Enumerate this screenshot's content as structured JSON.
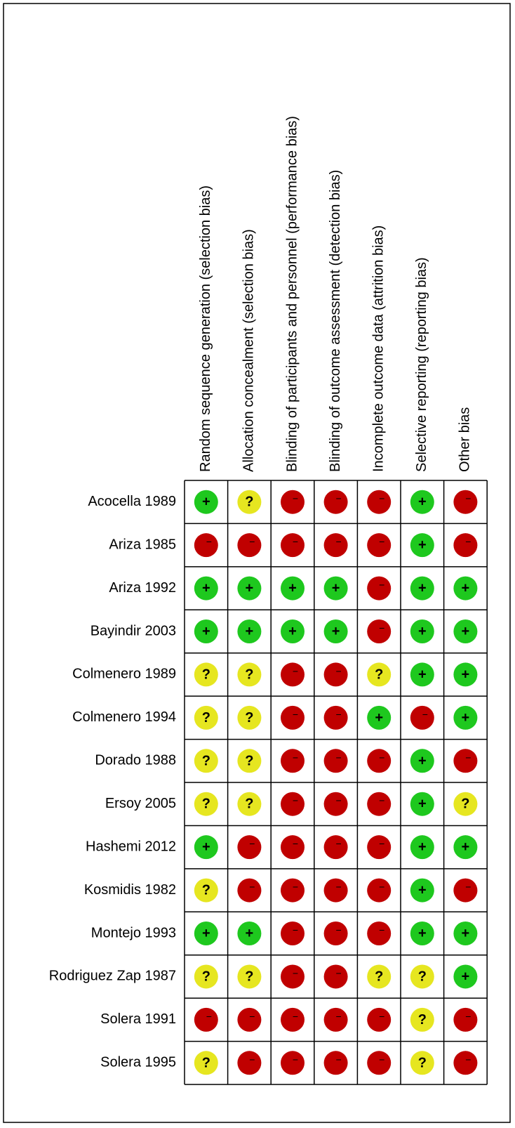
{
  "columns": [
    "Random sequence generation (selection bias)",
    "Allocation concealment (selection bias)",
    "Blinding of participants and personnel (performance bias)",
    "Blinding of outcome assessment (detection bias)",
    "Incomplete outcome data (attrition bias)",
    "Selective reporting (reporting bias)",
    "Other bias"
  ],
  "colors": {
    "+": "#1ec81e",
    "?": "#e6e620",
    "−": "#c00000"
  },
  "rows": [
    {
      "study": "Acocella 1989",
      "judgments": [
        "+",
        "?",
        "−",
        "−",
        "−",
        "+",
        "−"
      ]
    },
    {
      "study": "Ariza 1985",
      "judgments": [
        "−",
        "−",
        "−",
        "−",
        "−",
        "+",
        "−"
      ]
    },
    {
      "study": "Ariza 1992",
      "judgments": [
        "+",
        "+",
        "+",
        "+",
        "−",
        "+",
        "+"
      ]
    },
    {
      "study": "Bayindir 2003",
      "judgments": [
        "+",
        "+",
        "+",
        "+",
        "−",
        "+",
        "+"
      ]
    },
    {
      "study": "Colmenero 1989",
      "judgments": [
        "?",
        "?",
        "−",
        "−",
        "?",
        "+",
        "+"
      ]
    },
    {
      "study": "Colmenero 1994",
      "judgments": [
        "?",
        "?",
        "−",
        "−",
        "+",
        "−",
        "+"
      ]
    },
    {
      "study": "Dorado 1988",
      "judgments": [
        "?",
        "?",
        "−",
        "−",
        "−",
        "+",
        "−"
      ]
    },
    {
      "study": "Ersoy 2005",
      "judgments": [
        "?",
        "?",
        "−",
        "−",
        "−",
        "+",
        "?"
      ]
    },
    {
      "study": "Hashemi 2012",
      "judgments": [
        "+",
        "−",
        "−",
        "−",
        "−",
        "+",
        "+"
      ]
    },
    {
      "study": "Kosmidis 1982",
      "judgments": [
        "?",
        "−",
        "−",
        "−",
        "−",
        "+",
        "−"
      ]
    },
    {
      "study": "Montejo 1993",
      "judgments": [
        "+",
        "+",
        "−",
        "−",
        "−",
        "+",
        "+"
      ]
    },
    {
      "study": "Rodriguez Zap 1987",
      "judgments": [
        "?",
        "?",
        "−",
        "−",
        "?",
        "?",
        "+"
      ]
    },
    {
      "study": "Solera 1991",
      "judgments": [
        "−",
        "−",
        "−",
        "−",
        "−",
        "?",
        "−"
      ]
    },
    {
      "study": "Solera 1995",
      "judgments": [
        "?",
        "−",
        "−",
        "−",
        "−",
        "?",
        "−"
      ]
    }
  ]
}
